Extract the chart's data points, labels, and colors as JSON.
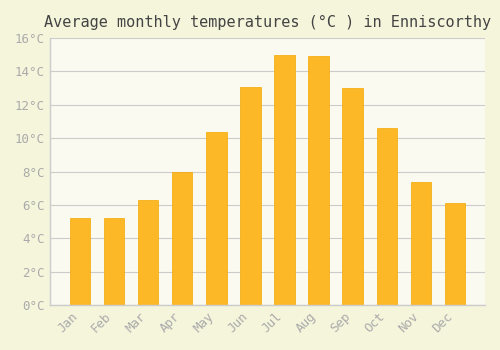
{
  "title": "Average monthly temperatures (°C ) in Enniscorthy",
  "months": [
    "Jan",
    "Feb",
    "Mar",
    "Apr",
    "May",
    "Jun",
    "Jul",
    "Aug",
    "Sep",
    "Oct",
    "Nov",
    "Dec"
  ],
  "values": [
    5.2,
    5.2,
    6.3,
    8.0,
    10.4,
    13.1,
    15.0,
    14.9,
    13.0,
    10.6,
    7.4,
    6.1
  ],
  "bar_color": "#FDB827",
  "bar_edge_color": "#F5A800",
  "background_color": "#F5F5DC",
  "plot_bg_color": "#FAFAF0",
  "grid_color": "#CCCCCC",
  "ylim": [
    0,
    16
  ],
  "ytick_step": 2,
  "title_fontsize": 11,
  "tick_fontsize": 9,
  "tick_color": "#AAAAAA",
  "spine_color": "#CCCCCC"
}
